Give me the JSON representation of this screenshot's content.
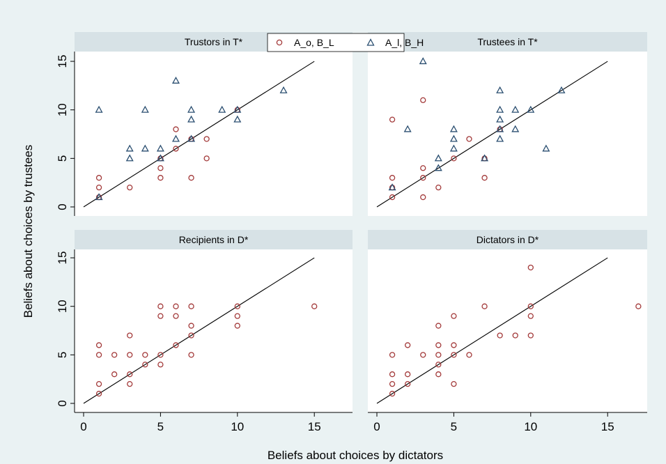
{
  "chart_data": {
    "type": "scatter",
    "xlabel": "Beliefs about choices by dictators",
    "ylabel": "Beliefs about choices by trustees",
    "xlim": [
      0,
      17
    ],
    "ylim": [
      0,
      15
    ],
    "xticks": [
      0,
      5,
      10,
      15
    ],
    "yticks": [
      0,
      5,
      10,
      15
    ],
    "grid": false,
    "reference_line": {
      "from": [
        0,
        0
      ],
      "to": [
        15,
        15
      ]
    },
    "legend": {
      "placement": "top-center",
      "items": [
        {
          "name": "A_o, B_L",
          "marker": "circle",
          "color": "#a33a3a"
        },
        {
          "name": "A_l, B_H",
          "marker": "triangle",
          "color": "#2a4e70"
        }
      ]
    },
    "panels": [
      {
        "title": "Trustors in T*",
        "series": [
          {
            "name": "A_o, B_L",
            "points": [
              [
                1,
                1
              ],
              [
                1,
                2
              ],
              [
                1,
                3
              ],
              [
                3,
                2
              ],
              [
                5,
                3
              ],
              [
                5,
                4
              ],
              [
                5,
                5
              ],
              [
                6,
                6
              ],
              [
                6,
                8
              ],
              [
                7,
                3
              ],
              [
                7,
                7
              ],
              [
                8,
                5
              ],
              [
                8,
                7
              ],
              [
                10,
                10
              ]
            ]
          },
          {
            "name": "A_l, B_H",
            "points": [
              [
                1,
                1
              ],
              [
                1,
                10
              ],
              [
                3,
                5
              ],
              [
                3,
                6
              ],
              [
                4,
                6
              ],
              [
                4,
                10
              ],
              [
                5,
                5
              ],
              [
                5,
                6
              ],
              [
                6,
                7
              ],
              [
                6,
                13
              ],
              [
                7,
                7
              ],
              [
                7,
                9
              ],
              [
                7,
                10
              ],
              [
                9,
                10
              ],
              [
                10,
                9
              ],
              [
                10,
                10
              ],
              [
                13,
                12
              ]
            ]
          }
        ]
      },
      {
        "title": "Trustees in T*",
        "series": [
          {
            "name": "A_o, B_L",
            "points": [
              [
                1,
                1
              ],
              [
                1,
                2
              ],
              [
                1,
                3
              ],
              [
                1,
                9
              ],
              [
                3,
                1
              ],
              [
                3,
                3
              ],
              [
                3,
                4
              ],
              [
                3,
                11
              ],
              [
                4,
                2
              ],
              [
                5,
                5
              ],
              [
                6,
                7
              ],
              [
                7,
                3
              ],
              [
                7,
                5
              ],
              [
                8,
                8
              ]
            ]
          },
          {
            "name": "A_l, B_H",
            "points": [
              [
                1,
                2
              ],
              [
                2,
                8
              ],
              [
                3,
                15
              ],
              [
                4,
                4
              ],
              [
                4,
                5
              ],
              [
                5,
                6
              ],
              [
                5,
                7
              ],
              [
                5,
                8
              ],
              [
                7,
                5
              ],
              [
                8,
                7
              ],
              [
                8,
                8
              ],
              [
                8,
                9
              ],
              [
                8,
                10
              ],
              [
                8,
                12
              ],
              [
                9,
                8
              ],
              [
                9,
                10
              ],
              [
                10,
                10
              ],
              [
                11,
                6
              ],
              [
                12,
                12
              ]
            ]
          }
        ]
      },
      {
        "title": "Recipients in D*",
        "series": [
          {
            "name": "A_o, B_L",
            "points": [
              [
                1,
                1
              ],
              [
                1,
                2
              ],
              [
                1,
                5
              ],
              [
                1,
                6
              ],
              [
                2,
                3
              ],
              [
                2,
                5
              ],
              [
                3,
                2
              ],
              [
                3,
                3
              ],
              [
                3,
                5
              ],
              [
                3,
                7
              ],
              [
                4,
                4
              ],
              [
                4,
                5
              ],
              [
                5,
                4
              ],
              [
                5,
                5
              ],
              [
                5,
                9
              ],
              [
                5,
                10
              ],
              [
                6,
                6
              ],
              [
                6,
                9
              ],
              [
                6,
                10
              ],
              [
                7,
                5
              ],
              [
                7,
                7
              ],
              [
                7,
                8
              ],
              [
                7,
                10
              ],
              [
                10,
                8
              ],
              [
                10,
                9
              ],
              [
                10,
                10
              ],
              [
                15,
                10
              ]
            ]
          }
        ]
      },
      {
        "title": "Dictators in D*",
        "series": [
          {
            "name": "A_o, B_L",
            "points": [
              [
                1,
                1
              ],
              [
                1,
                2
              ],
              [
                1,
                3
              ],
              [
                1,
                5
              ],
              [
                2,
                2
              ],
              [
                2,
                3
              ],
              [
                2,
                6
              ],
              [
                3,
                5
              ],
              [
                4,
                3
              ],
              [
                4,
                4
              ],
              [
                4,
                5
              ],
              [
                4,
                6
              ],
              [
                4,
                8
              ],
              [
                5,
                2
              ],
              [
                5,
                5
              ],
              [
                5,
                6
              ],
              [
                5,
                9
              ],
              [
                6,
                5
              ],
              [
                7,
                10
              ],
              [
                8,
                7
              ],
              [
                9,
                7
              ],
              [
                10,
                7
              ],
              [
                10,
                9
              ],
              [
                10,
                10
              ],
              [
                10,
                14
              ],
              [
                17,
                10
              ]
            ]
          }
        ]
      }
    ]
  }
}
